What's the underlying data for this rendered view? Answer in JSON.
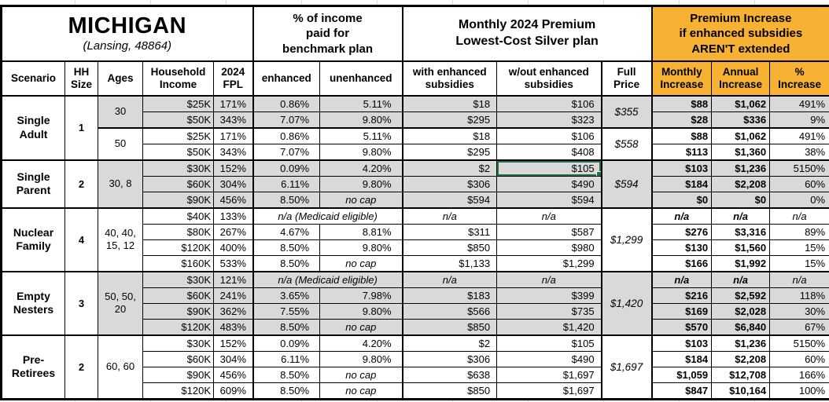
{
  "colors": {
    "accent_orange": "#F7B233",
    "row_shading_gray": "#D9D9D9",
    "selection_green": "#217346",
    "border_black": "#000000"
  },
  "header": {
    "title": "MICHIGAN",
    "subtitle": "(Lansing, 48864)",
    "group_income_pct": "% of income\npaid for\nbenchmark plan",
    "group_premium": "Monthly 2024 Premium\nLowest-Cost Silver plan",
    "group_increase": "Premium Increase\nif enhanced subsidies\nAREN'T extended",
    "columns": [
      "Scenario",
      "HH\nSize",
      "Ages",
      "Household\nIncome",
      "2024\nFPL",
      "enhanced",
      "unenhanced",
      "with enhanced\nsubsidies",
      "w/out enhanced\nsubsidies",
      "Full\nPrice",
      "Monthly\nIncrease",
      "Annual\nIncrease",
      "%\nIncrease"
    ]
  },
  "groups": [
    {
      "scenario": "Single\nAdult",
      "hh_size": "1",
      "age_blocks": [
        {
          "ages": "30",
          "shaded": true,
          "full_price": "$355",
          "rows": [
            {
              "income": "$25K",
              "fpl": "171%",
              "enhanced": "0.86%",
              "unenhanced": "5.11%",
              "with_sub": "$18",
              "wout_sub": "$106",
              "monthly": "$88",
              "annual": "$1,062",
              "pct": "491%"
            },
            {
              "income": "$50K",
              "fpl": "343%",
              "enhanced": "7.07%",
              "unenhanced": "9.80%",
              "with_sub": "$295",
              "wout_sub": "$323",
              "monthly": "$28",
              "annual": "$336",
              "pct": "9%"
            }
          ]
        },
        {
          "ages": "50",
          "shaded": false,
          "full_price": "$558",
          "rows": [
            {
              "income": "$25K",
              "fpl": "171%",
              "enhanced": "0.86%",
              "unenhanced": "5.11%",
              "with_sub": "$18",
              "wout_sub": "$106",
              "monthly": "$88",
              "annual": "$1,062",
              "pct": "491%"
            },
            {
              "income": "$50K",
              "fpl": "343%",
              "enhanced": "7.07%",
              "unenhanced": "9.80%",
              "with_sub": "$295",
              "wout_sub": "$408",
              "monthly": "$113",
              "annual": "$1,360",
              "pct": "38%"
            }
          ]
        }
      ]
    },
    {
      "scenario": "Single\nParent",
      "hh_size": "2",
      "age_blocks": [
        {
          "ages": "30, 8",
          "shaded": true,
          "full_price": "$594",
          "rows": [
            {
              "income": "$30K",
              "fpl": "152%",
              "enhanced": "0.09%",
              "unenhanced": "4.20%",
              "with_sub": "$2",
              "wout_sub": "$105",
              "selected": true,
              "monthly": "$103",
              "annual": "$1,236",
              "pct": "5150%"
            },
            {
              "income": "$60K",
              "fpl": "304%",
              "enhanced": "6.11%",
              "unenhanced": "9.80%",
              "with_sub": "$306",
              "wout_sub": "$490",
              "monthly": "$184",
              "annual": "$2,208",
              "pct": "60%"
            },
            {
              "income": "$90K",
              "fpl": "456%",
              "enhanced": "8.50%",
              "unenhanced": "no cap",
              "with_sub": "$594",
              "wout_sub": "$594",
              "monthly": "$0",
              "annual": "$0",
              "pct": "0%"
            }
          ]
        }
      ]
    },
    {
      "scenario": "Nuclear\nFamily",
      "hh_size": "4",
      "age_blocks": [
        {
          "ages": "40, 40,\n15, 12",
          "shaded": false,
          "full_price": "$1,299",
          "rows": [
            {
              "income": "$40K",
              "fpl": "133%",
              "medicaid": "n/a (Medicaid eligible)",
              "with_sub": "n/a",
              "wout_sub": "n/a",
              "monthly": "n/a",
              "annual": "n/a",
              "pct": "n/a"
            },
            {
              "income": "$80K",
              "fpl": "267%",
              "enhanced": "4.67%",
              "unenhanced": "8.81%",
              "with_sub": "$311",
              "wout_sub": "$587",
              "monthly": "$276",
              "annual": "$3,316",
              "pct": "89%"
            },
            {
              "income": "$120K",
              "fpl": "400%",
              "enhanced": "8.50%",
              "unenhanced": "9.80%",
              "with_sub": "$850",
              "wout_sub": "$980",
              "monthly": "$130",
              "annual": "$1,560",
              "pct": "15%"
            },
            {
              "income": "$160K",
              "fpl": "533%",
              "enhanced": "8.50%",
              "unenhanced": "no cap",
              "with_sub": "$1,133",
              "wout_sub": "$1,299",
              "monthly": "$166",
              "annual": "$1,992",
              "pct": "15%"
            }
          ]
        }
      ]
    },
    {
      "scenario": "Empty\nNesters",
      "hh_size": "3",
      "age_blocks": [
        {
          "ages": "50, 50,\n20",
          "shaded": true,
          "full_price": "$1,420",
          "rows": [
            {
              "income": "$30K",
              "fpl": "121%",
              "medicaid": "n/a (Medicaid eligible)",
              "with_sub": "n/a",
              "wout_sub": "n/a",
              "monthly": "n/a",
              "annual": "n/a",
              "pct": "n/a"
            },
            {
              "income": "$60K",
              "fpl": "241%",
              "enhanced": "3.65%",
              "unenhanced": "7.98%",
              "with_sub": "$183",
              "wout_sub": "$399",
              "monthly": "$216",
              "annual": "$2,592",
              "pct": "118%"
            },
            {
              "income": "$90K",
              "fpl": "362%",
              "enhanced": "7.55%",
              "unenhanced": "9.80%",
              "with_sub": "$566",
              "wout_sub": "$735",
              "monthly": "$169",
              "annual": "$2,028",
              "pct": "30%"
            },
            {
              "income": "$120K",
              "fpl": "483%",
              "enhanced": "8.50%",
              "unenhanced": "no cap",
              "with_sub": "$850",
              "wout_sub": "$1,420",
              "monthly": "$570",
              "annual": "$6,840",
              "pct": "67%"
            }
          ]
        }
      ]
    },
    {
      "scenario": "Pre-\nRetirees",
      "hh_size": "2",
      "age_blocks": [
        {
          "ages": "60, 60",
          "shaded": false,
          "full_price": "$1,697",
          "rows": [
            {
              "income": "$30K",
              "fpl": "152%",
              "enhanced": "0.09%",
              "unenhanced": "4.20%",
              "with_sub": "$2",
              "wout_sub": "$105",
              "monthly": "$103",
              "annual": "$1,236",
              "pct": "5150%"
            },
            {
              "income": "$60K",
              "fpl": "304%",
              "enhanced": "6.11%",
              "unenhanced": "9.80%",
              "with_sub": "$306",
              "wout_sub": "$490",
              "monthly": "$184",
              "annual": "$2,208",
              "pct": "60%"
            },
            {
              "income": "$90K",
              "fpl": "456%",
              "enhanced": "8.50%",
              "unenhanced": "no cap",
              "with_sub": "$638",
              "wout_sub": "$1,697",
              "monthly": "$1,059",
              "annual": "$12,708",
              "pct": "166%"
            },
            {
              "income": "$120K",
              "fpl": "609%",
              "enhanced": "8.50%",
              "unenhanced": "no cap",
              "with_sub": "$850",
              "wout_sub": "$1,697",
              "monthly": "$847",
              "annual": "$10,164",
              "pct": "100%"
            }
          ]
        }
      ]
    }
  ]
}
